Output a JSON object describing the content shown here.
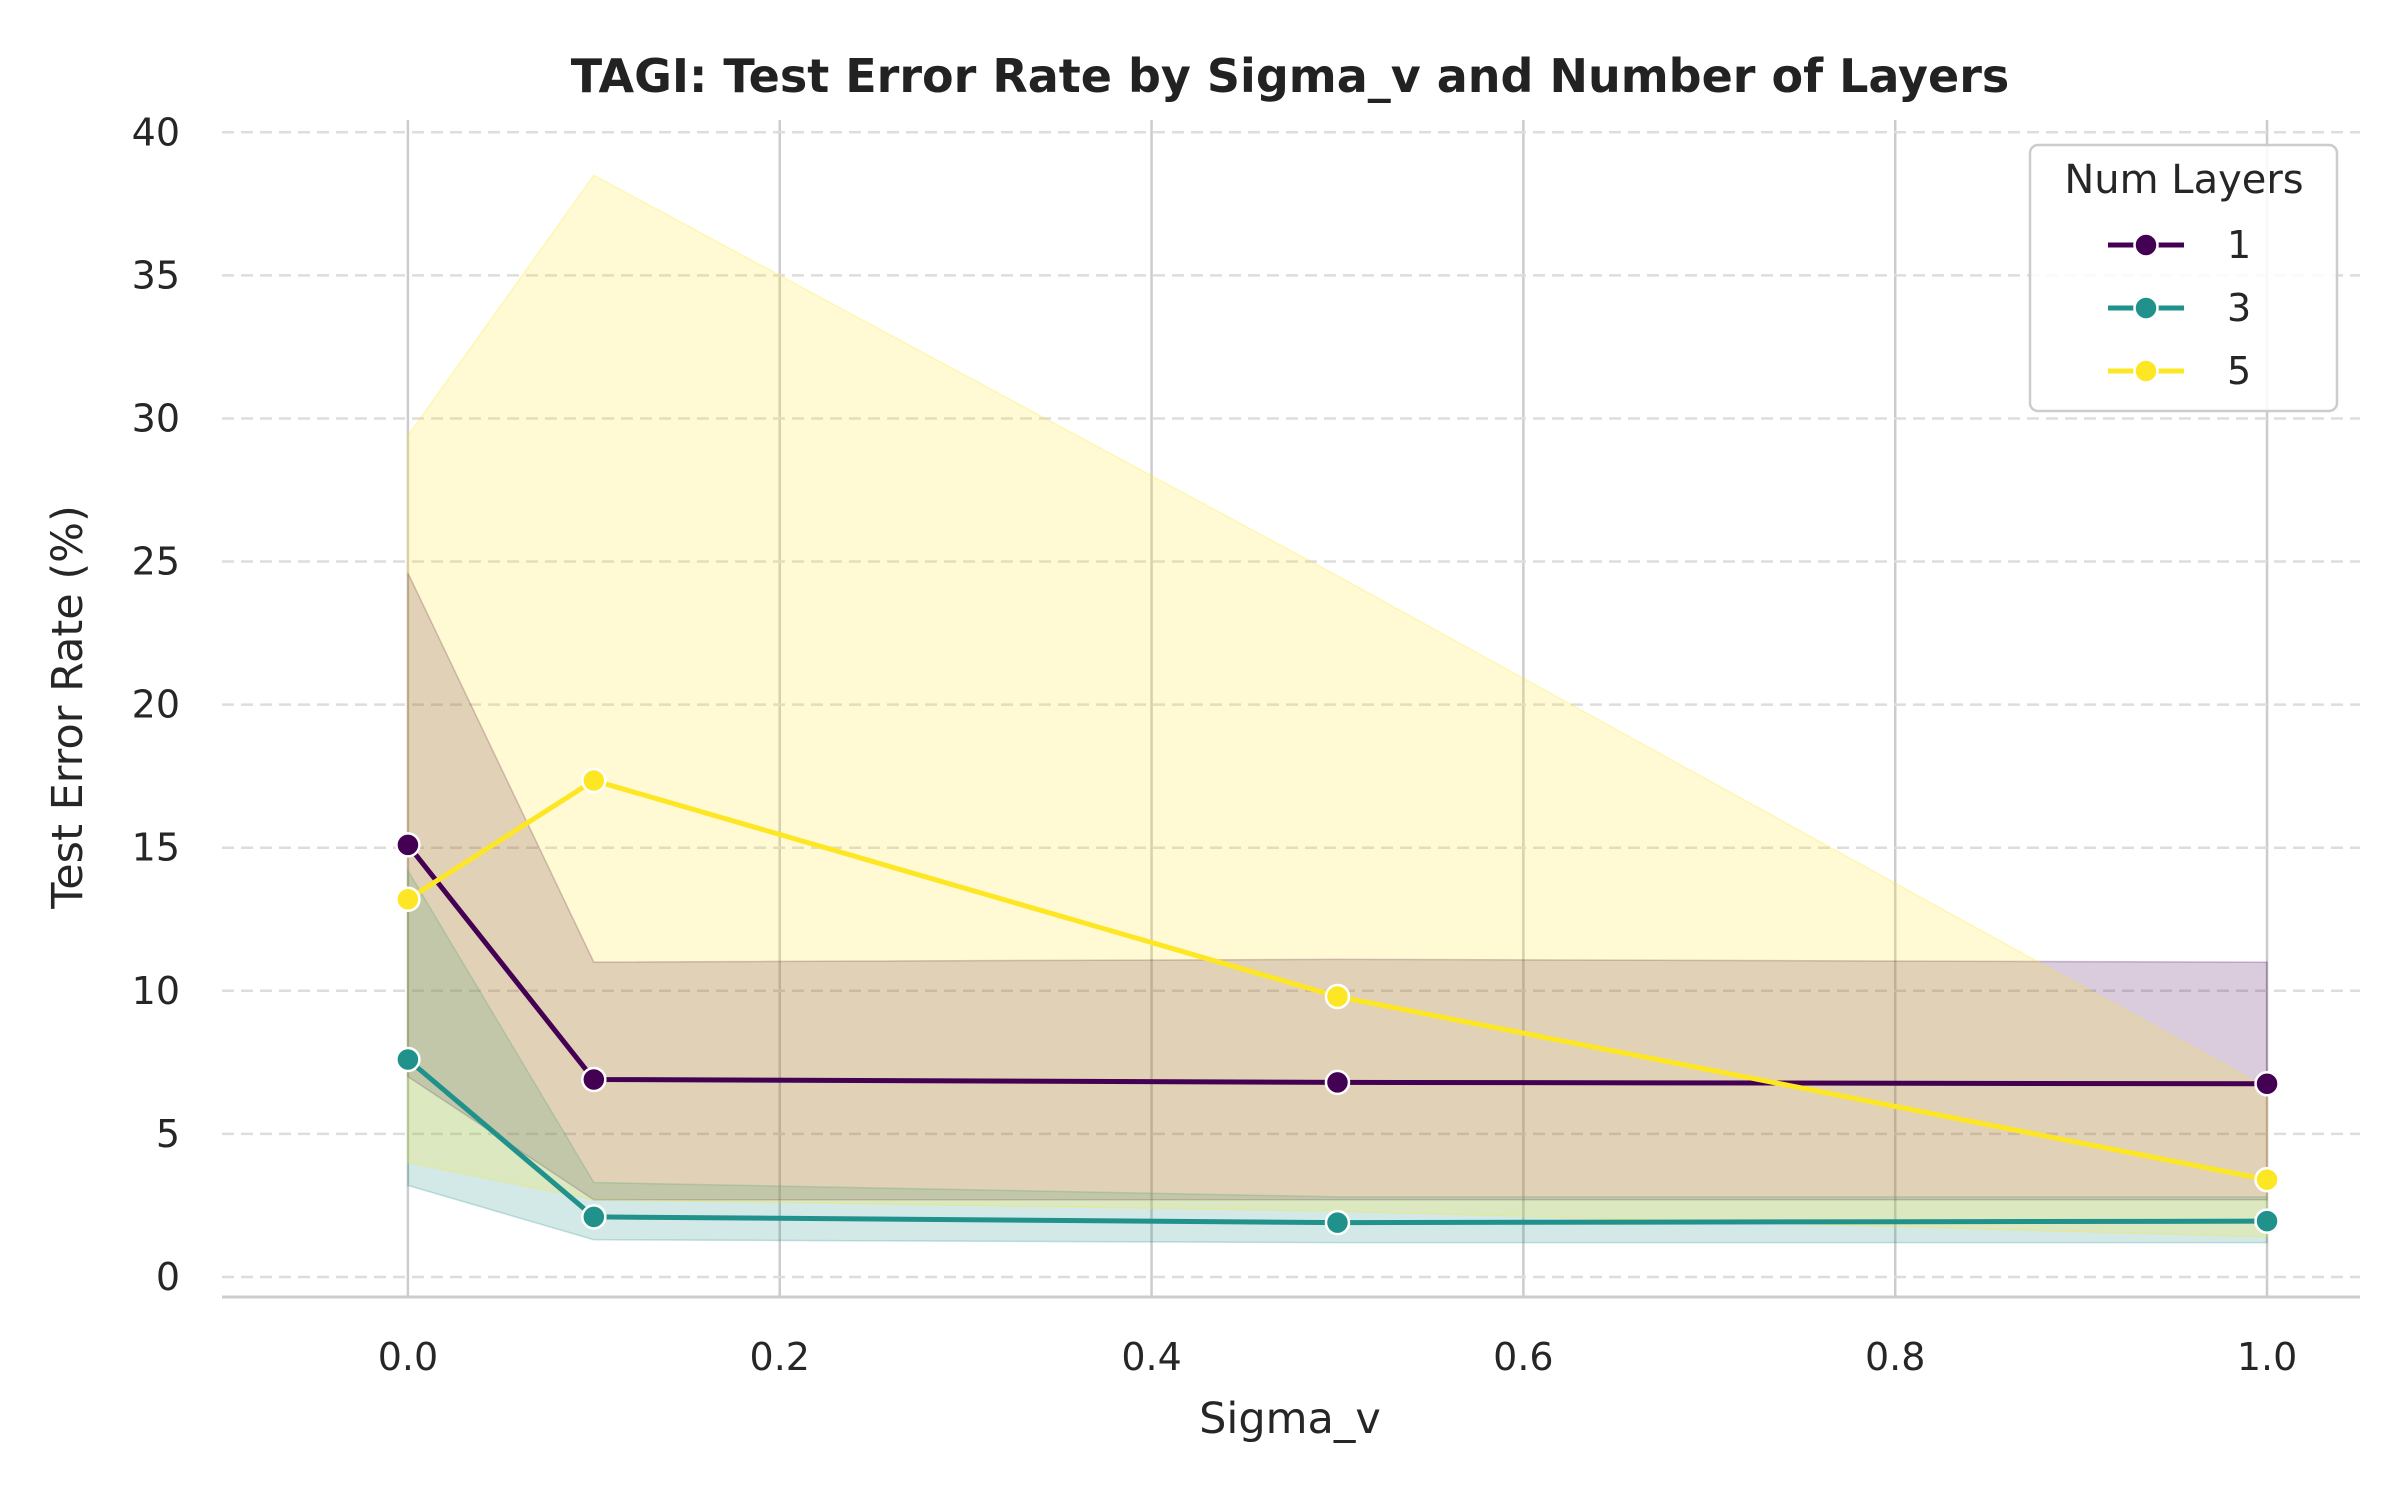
{
  "chart_data": {
    "type": "line",
    "title": "TAGI: Test Error Rate by Sigma_v and Number of Layers",
    "xlabel": "Sigma_v",
    "ylabel": "Test Error Rate (%)",
    "xlim": [
      -0.1,
      1.05
    ],
    "ylim": [
      -0.7,
      40.5
    ],
    "x_ticks": [
      0.0,
      0.2,
      0.4,
      0.6,
      0.8,
      1.0
    ],
    "x_tick_labels": [
      "0.0",
      "0.2",
      "0.4",
      "0.6",
      "0.8",
      "1.0"
    ],
    "y_ticks": [
      0,
      5,
      10,
      15,
      20,
      25,
      30,
      35,
      40
    ],
    "y_tick_labels": [
      "0",
      "5",
      "10",
      "15",
      "20",
      "25",
      "30",
      "35",
      "40"
    ],
    "grid": true,
    "legend": {
      "title": "Num Layers",
      "placement": "top-right"
    },
    "series": [
      {
        "name": "1",
        "color": "#440154",
        "x": [
          0.0,
          0.1,
          0.5,
          1.0
        ],
        "y": [
          15.1,
          6.9,
          6.8,
          6.75
        ],
        "ci_lower": [
          7.0,
          2.7,
          2.7,
          2.7
        ],
        "ci_upper": [
          24.6,
          11.0,
          11.1,
          11.0
        ]
      },
      {
        "name": "3",
        "color": "#21918c",
        "x": [
          0.0,
          0.1,
          0.5,
          1.0
        ],
        "y": [
          7.6,
          2.1,
          1.9,
          1.95
        ],
        "ci_lower": [
          3.2,
          1.3,
          1.2,
          1.2
        ],
        "ci_upper": [
          14.2,
          3.3,
          2.8,
          2.8
        ]
      },
      {
        "name": "5",
        "color": "#fde725",
        "x": [
          0.0,
          0.1,
          0.5,
          1.0
        ],
        "y": [
          13.2,
          17.35,
          9.8,
          3.4
        ],
        "ci_lower": [
          4.0,
          2.7,
          2.3,
          1.4
        ],
        "ci_upper": [
          29.4,
          38.5,
          24.5,
          6.6
        ]
      }
    ]
  }
}
